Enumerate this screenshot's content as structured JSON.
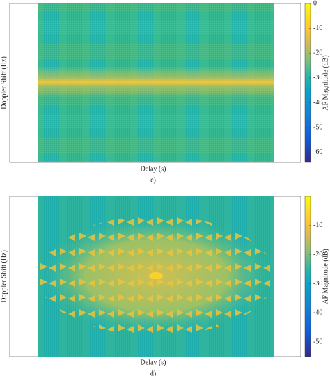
{
  "chart_data": [
    {
      "type": "heatmap",
      "caption": "c)",
      "xlabel": "Delay (s)",
      "ylabel": "Doppler Shift (Hz)",
      "colorbar_label": "AF Magnitude (dB)",
      "colormap": "parula",
      "clim": [
        -64,
        0
      ],
      "cticks": [
        0,
        -10,
        -20,
        -30,
        -40,
        -50,
        -60
      ]
    },
    {
      "type": "heatmap",
      "caption": "d)",
      "xlabel": "Delay (s)",
      "ylabel": "Doppler Shift (Hz)",
      "colorbar_label": "AF Magnitude (dB)",
      "colormap": "parula",
      "clim": [
        -55,
        0
      ],
      "cticks": [
        -10,
        -20,
        -30,
        -40,
        -50
      ]
    }
  ]
}
